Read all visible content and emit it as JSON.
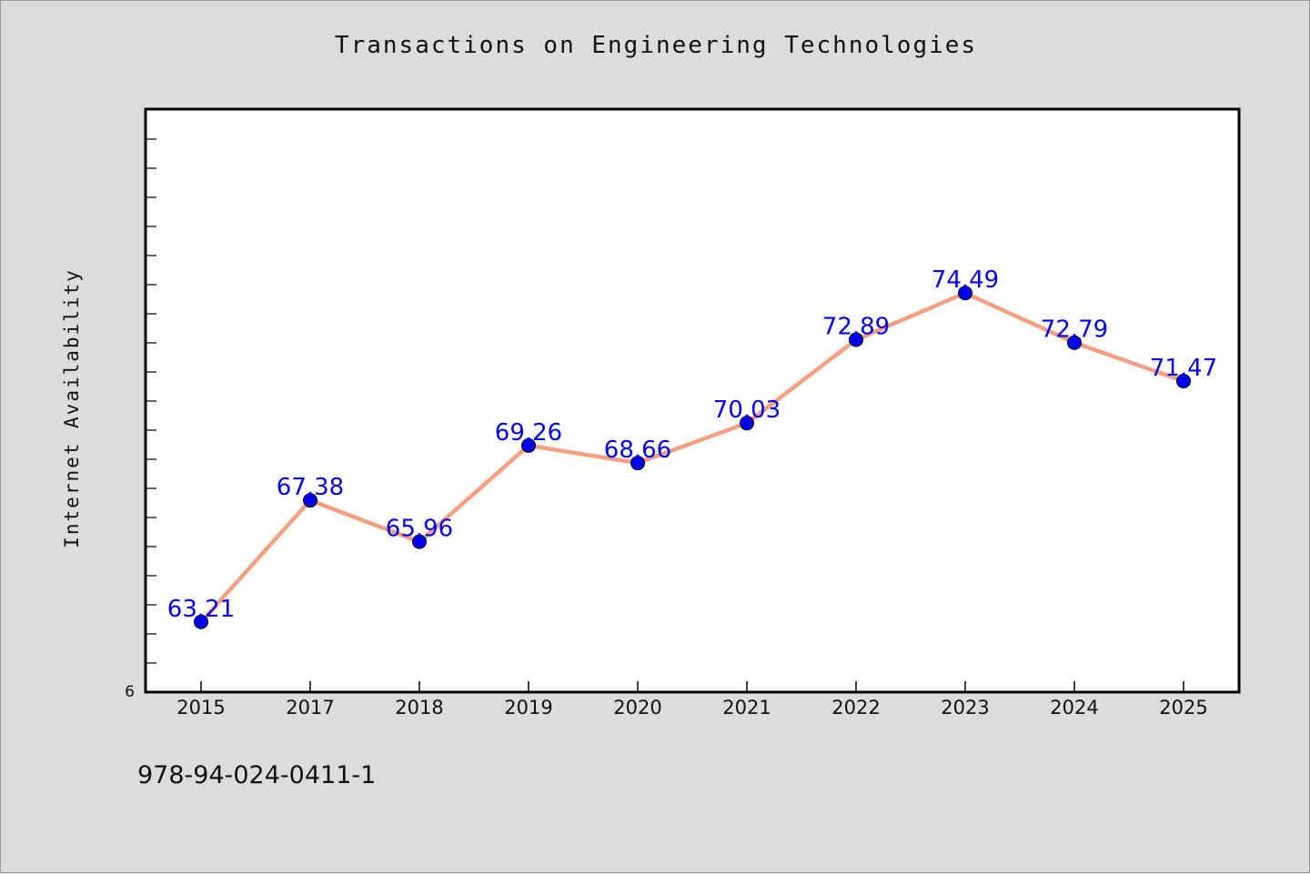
{
  "chart_data": {
    "type": "line",
    "title": "Transactions on Engineering Technologies",
    "xlabel": "",
    "ylabel": "Internet Availability",
    "categories": [
      "2015",
      "2017",
      "2018",
      "2019",
      "2020",
      "2021",
      "2022",
      "2023",
      "2024",
      "2025"
    ],
    "series": [
      {
        "values": [
          63.21,
          67.38,
          65.96,
          69.26,
          68.66,
          70.03,
          72.89,
          74.49,
          72.79,
          71.47
        ]
      }
    ],
    "ytick_labels": [
      "6"
    ],
    "ylim": [
      60.8,
      80.8
    ],
    "grid": false,
    "line_color": "#f4a080",
    "marker_color": "#0000ee",
    "label_color": "#0000ee"
  },
  "footer": {
    "text": "978-94-024-0411-1"
  }
}
